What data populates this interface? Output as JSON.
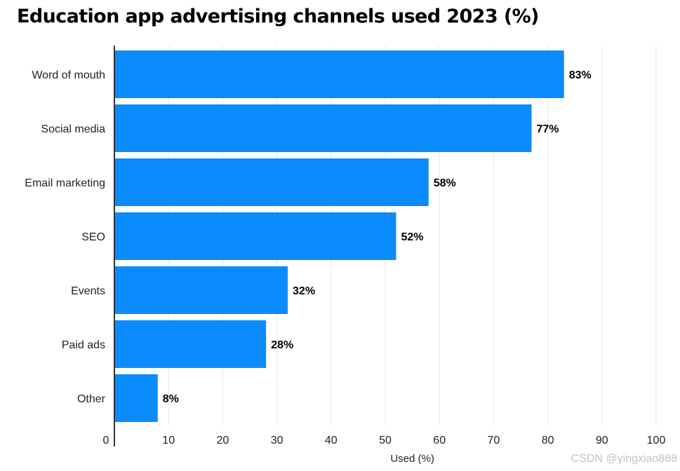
{
  "chart_data": {
    "type": "bar",
    "orientation": "horizontal",
    "title": "Education app advertising channels used 2023 (%)",
    "categories": [
      "Word of mouth",
      "Social media",
      "Email marketing",
      "SEO",
      "Events",
      "Paid ads",
      "Other"
    ],
    "values": [
      83,
      77,
      58,
      52,
      32,
      28,
      8
    ],
    "value_labels": [
      "83%",
      "77%",
      "58%",
      "52%",
      "32%",
      "28%",
      "8%"
    ],
    "xlabel": "Used (%)",
    "ylabel": "",
    "xlim": [
      0,
      100
    ],
    "xticks": [
      0,
      10,
      20,
      30,
      40,
      50,
      60,
      70,
      80,
      90,
      100
    ],
    "grid": true,
    "bar_color": "#0a8cff"
  },
  "watermark": "CSDN @yingxiao888"
}
